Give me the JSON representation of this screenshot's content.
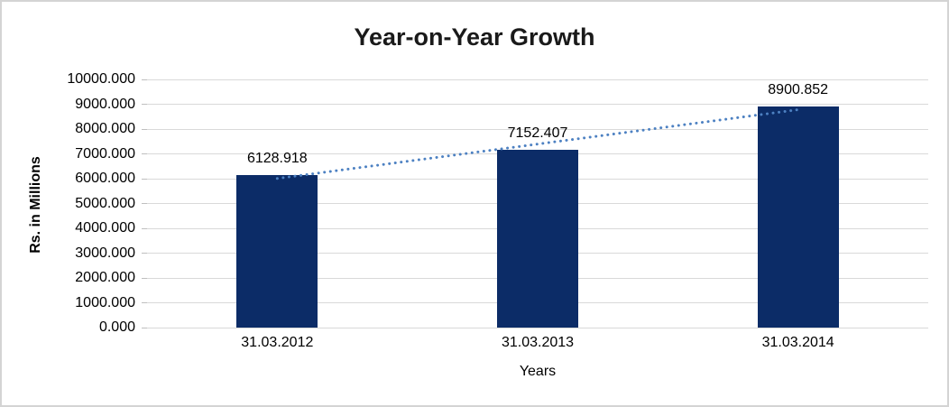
{
  "chart_data": {
    "type": "bar",
    "title": "Year-on-Year Growth",
    "xlabel": "Years",
    "ylabel": "Rs. in Millions",
    "categories": [
      "31.03.2012",
      "31.03.2013",
      "31.03.2014"
    ],
    "series": [
      {
        "name": "Rs. in Millions",
        "values": [
          6128.918,
          7152.407,
          8900.852
        ],
        "value_labels": [
          "6128.918",
          "7152.407",
          "8900.852"
        ]
      }
    ],
    "ylim": [
      0,
      10000
    ],
    "ytick_step": 1000,
    "ytick_labels": [
      "0.000",
      "1000.000",
      "2000.000",
      "3000.000",
      "4000.000",
      "5000.000",
      "6000.000",
      "7000.000",
      "8000.000",
      "9000.000",
      "10000.000"
    ],
    "grid": true,
    "legend": "none",
    "trendline": {
      "type": "linear",
      "style": "dotted"
    },
    "colors": {
      "bar": "#0c2c67",
      "trendline": "#4d81c2",
      "gridline": "#d9d9d9",
      "tickmark": "#bfbfbf",
      "text": "#000000",
      "title": "#1a1a1a"
    }
  }
}
